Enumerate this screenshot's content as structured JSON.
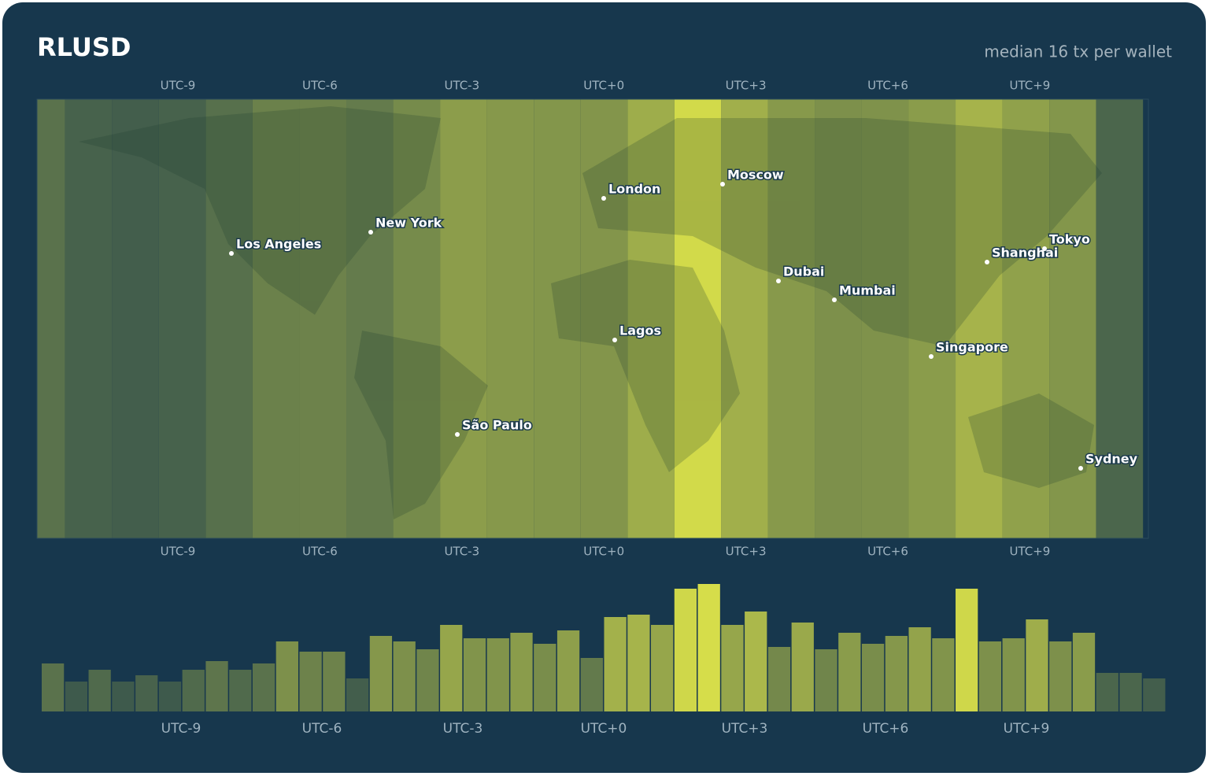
{
  "chart_data": {
    "type": "bar",
    "title": "RLUSD",
    "subtitle": "median 16 tx per wallet",
    "zone_labels": [
      "UTC-9",
      "UTC-6",
      "UTC-3",
      "UTC+0",
      "UTC+3",
      "UTC+6",
      "UTC+9"
    ],
    "cities": [
      "Los Angeles",
      "New York",
      "London",
      "Moscow",
      "Lagos",
      "São Paulo",
      "Dubai",
      "Mumbai",
      "Singapore",
      "Shanghai",
      "Tokyo",
      "Sydney"
    ],
    "values": [
      61,
      38,
      53,
      38,
      46,
      38,
      53,
      64,
      53,
      61,
      89,
      76,
      76,
      42,
      96,
      89,
      79,
      110,
      93,
      93,
      100,
      86,
      103,
      68,
      120,
      123,
      110,
      156,
      162,
      110,
      127,
      82,
      113,
      79,
      100,
      86,
      96,
      107,
      93,
      156,
      89,
      93,
      117,
      89,
      100,
      49,
      49,
      42
    ],
    "color_low": "#3e5a4c",
    "color_high": "#d6dd4a"
  }
}
